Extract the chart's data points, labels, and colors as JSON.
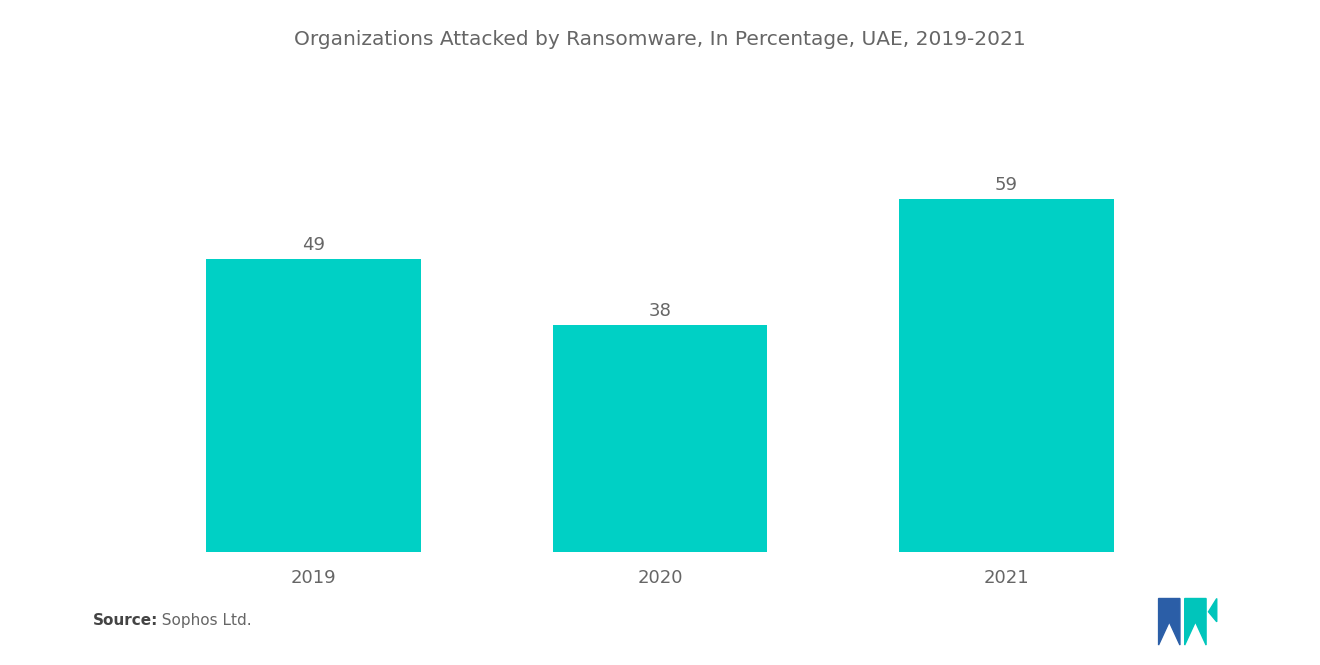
{
  "title": "Organizations Attacked by Ransomware, In Percentage, UAE, 2019-2021",
  "categories": [
    "2019",
    "2020",
    "2021"
  ],
  "values": [
    49,
    38,
    59
  ],
  "bar_color": "#00D0C5",
  "background_color": "#ffffff",
  "title_fontsize": 14.5,
  "label_fontsize": 13,
  "tick_fontsize": 13,
  "source_bold": "Source:",
  "source_rest": "  Sophos Ltd.",
  "ylim": [
    0,
    70
  ],
  "bar_width": 0.62,
  "text_color": "#666666",
  "logo_blue": "#2B5EA7",
  "logo_teal": "#00C5BB"
}
